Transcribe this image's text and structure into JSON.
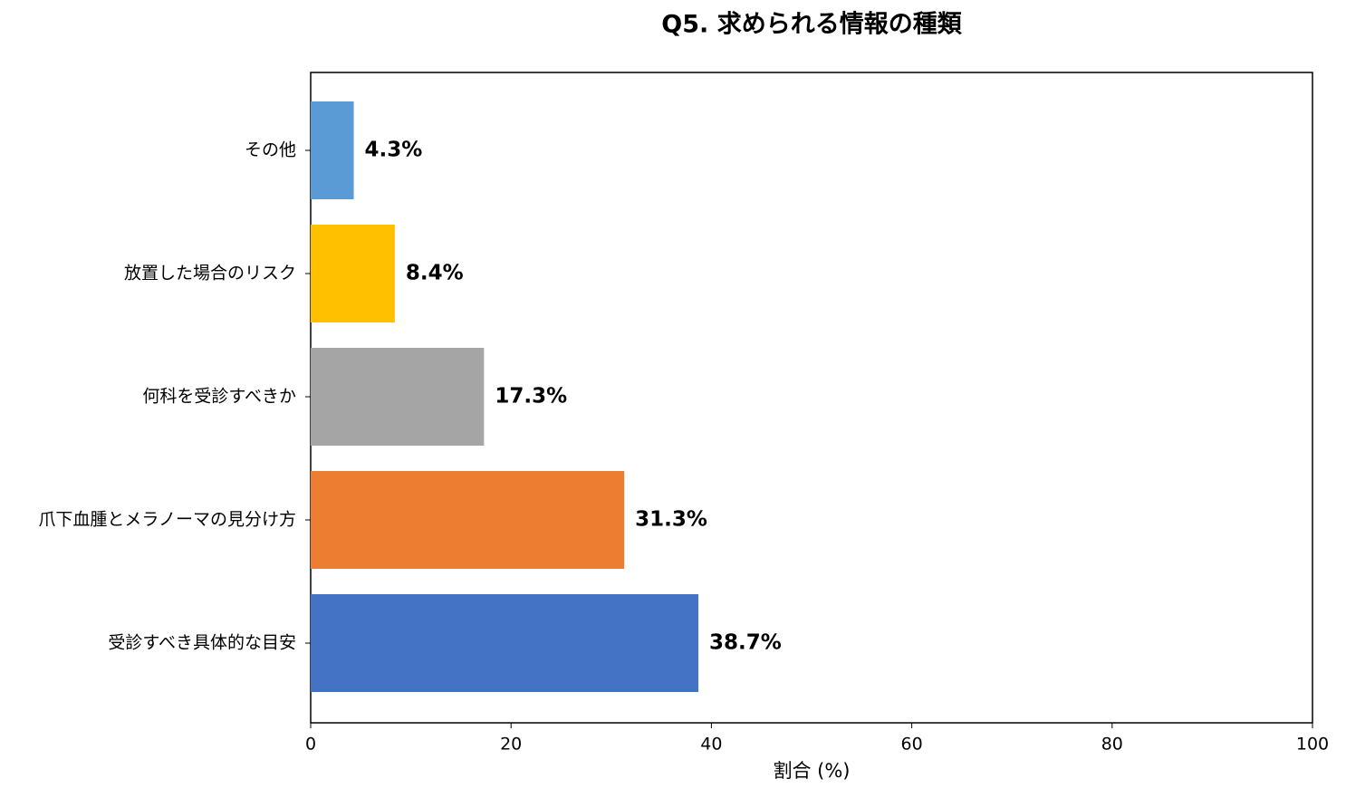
{
  "chart_data": {
    "type": "barh",
    "title": "Q5. 求められる情報の種類",
    "xlabel": "割合 (%)",
    "categories": [
      "受診すべき具体的な目安",
      "爪下血腫とメラノーマの見分け方",
      "何科を受診すべきか",
      "放置した場合のリスク",
      "その他"
    ],
    "values": [
      38.7,
      31.3,
      17.3,
      8.4,
      4.3
    ],
    "value_labels": [
      "38.7%",
      "31.3%",
      "17.3%",
      "8.4%",
      "4.3%"
    ],
    "colors": [
      "#4472c4",
      "#ed7d31",
      "#a5a5a5",
      "#ffc000",
      "#5b9bd5"
    ],
    "xlim": [
      0,
      100
    ],
    "xticks": [
      0,
      20,
      40,
      60,
      80,
      100
    ],
    "grid": false
  }
}
